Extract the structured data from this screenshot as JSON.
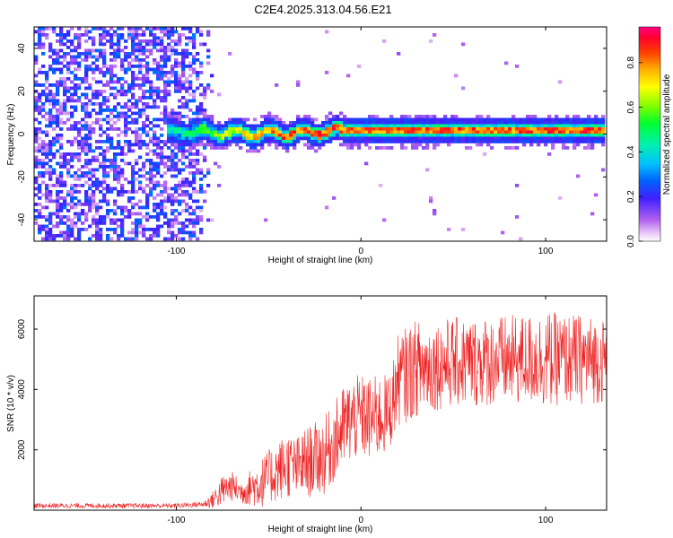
{
  "figure_title": "C2E4.2025.313.04.56.E21",
  "colors": {
    "snr_line": "#ee2222",
    "axis": "#000000",
    "background": "#ffffff"
  },
  "chart_data": [
    {
      "type": "heatmap",
      "title": "C2E4.2025.313.04.56.E21",
      "xlabel": "Height of straight line (km)",
      "ylabel": "Frequency (Hz)",
      "xlim": [
        -177,
        133
      ],
      "ylim": [
        -50,
        50
      ],
      "x_ticks": [
        -100,
        0,
        100
      ],
      "x_tick_labels": [
        "-100",
        "0",
        "100"
      ],
      "y_ticks": [
        -40,
        -20,
        0,
        20,
        40
      ],
      "y_tick_labels": [
        "-40",
        "-20",
        "0",
        "20",
        "40"
      ],
      "colorbar": {
        "label": "Normalized spectral amplitude",
        "range": [
          0,
          0.96
        ],
        "ticks": [
          0.0,
          0.2,
          0.4,
          0.6,
          0.8
        ],
        "tick_labels": [
          "0.0",
          "0.2",
          "0.4",
          "0.6",
          "0.8"
        ],
        "colormap": "rainbow"
      },
      "features": {
        "noise_region_x": [
          -177,
          -80
        ],
        "signal_band_start_x": -105,
        "signal_center_freq_hz": 1.5,
        "signal_center_wander_x": [
          -100,
          -10
        ],
        "signal_center_wander_freq": [
          -3,
          4
        ],
        "signal_amplitude_peak": 0.96,
        "noise_amplitude": 0.25
      }
    },
    {
      "type": "line",
      "xlabel": "Height of straight line (km)",
      "ylabel": "SNR (10 * v/v)",
      "xlim": [
        -177,
        133
      ],
      "ylim": [
        0,
        7100
      ],
      "x_ticks": [
        -100,
        0,
        100
      ],
      "x_tick_labels": [
        "-100",
        "0",
        "100"
      ],
      "y_ticks": [
        2000,
        4000,
        6000
      ],
      "y_tick_labels": [
        "2000",
        "4000",
        "6000"
      ],
      "series": [
        {
          "name": "SNR",
          "envelope_x": [
            -177,
            -100,
            -85,
            -80,
            -75,
            -70,
            -65,
            -60,
            -55,
            -50,
            -45,
            -40,
            -35,
            -30,
            -25,
            -20,
            -15,
            -10,
            -5,
            0,
            5,
            10,
            15,
            18,
            20,
            25,
            30,
            40,
            50,
            60,
            70,
            80,
            90,
            100,
            110,
            120,
            133
          ],
          "envelope_mean": [
            150,
            150,
            200,
            350,
            650,
            800,
            600,
            750,
            850,
            1100,
            1300,
            1500,
            1400,
            1550,
            1700,
            1800,
            2200,
            2700,
            3000,
            3100,
            3000,
            3100,
            3200,
            3800,
            4300,
            4500,
            4700,
            4800,
            4900,
            4900,
            4950,
            4950,
            5000,
            5000,
            5000,
            5000,
            4950
          ],
          "envelope_spread": [
            80,
            80,
            100,
            300,
            500,
            500,
            400,
            600,
            800,
            900,
            1000,
            1100,
            1000,
            1200,
            1200,
            1300,
            1300,
            1400,
            1400,
            1400,
            1400,
            1400,
            1300,
            1400,
            1500,
            1600,
            1600,
            1500,
            1500,
            1500,
            1500,
            1500,
            1500,
            1600,
            1500,
            1500,
            1400
          ]
        }
      ]
    }
  ]
}
